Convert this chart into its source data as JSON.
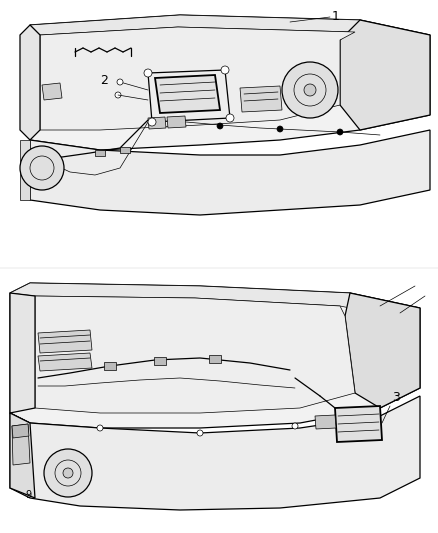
{
  "background_color": "#ffffff",
  "line_color": "#000000",
  "fig_width": 4.38,
  "fig_height": 5.33,
  "dpi": 100
}
